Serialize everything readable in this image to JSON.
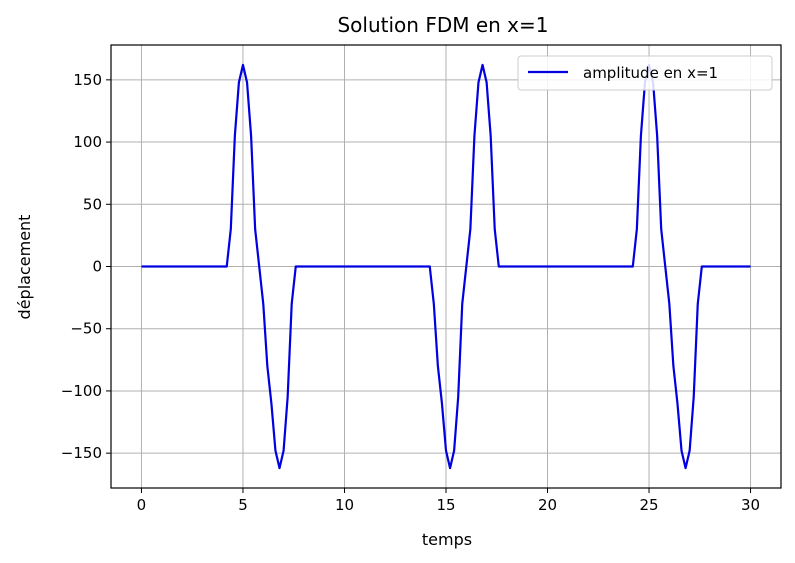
{
  "chart_data": {
    "type": "line",
    "title": "Solution FDM en x=1",
    "xlabel": "temps",
    "ylabel": "déplacement",
    "xlim": [
      -1.5,
      31.5
    ],
    "ylim": [
      -178,
      178
    ],
    "xticks": [
      0,
      5,
      10,
      15,
      20,
      25,
      30
    ],
    "xtick_labels": [
      "0",
      "5",
      "10",
      "15",
      "20",
      "25",
      "30"
    ],
    "yticks": [
      -150,
      -100,
      -50,
      0,
      50,
      100,
      150
    ],
    "ytick_labels": [
      "−150",
      "−100",
      "−50",
      "0",
      "50",
      "100",
      "150"
    ],
    "grid": true,
    "legend_position": "upper-right",
    "series": [
      {
        "name": "amplitude en x=1",
        "color": "#0000e0",
        "x": [
          0,
          0.2,
          0.4,
          0.6,
          0.8,
          1.0,
          1.2,
          1.4,
          1.6,
          1.8,
          2.0,
          2.2,
          2.4,
          2.6,
          2.8,
          3.0,
          3.2,
          3.4,
          3.6,
          3.8,
          4.0,
          4.2,
          4.4,
          4.6,
          4.8,
          5.0,
          5.2,
          5.4,
          5.6,
          5.8,
          6.0,
          6.2,
          6.4,
          6.6,
          6.8,
          7.0,
          7.2,
          7.4,
          7.6,
          7.8,
          8.0,
          8.2,
          8.4,
          8.6,
          8.8,
          9.0,
          9.2,
          9.4,
          9.6,
          9.8,
          10.0,
          10.2,
          10.4,
          10.6,
          10.8,
          11.0,
          11.2,
          11.4,
          11.6,
          11.8,
          12.0,
          12.2,
          12.4,
          12.6,
          12.8,
          13.0,
          13.2,
          13.4,
          13.6,
          13.8,
          14.0,
          14.2,
          14.4,
          14.6,
          14.8,
          15.0,
          15.2,
          15.4,
          15.6,
          15.8,
          16.0,
          16.2,
          16.4,
          16.6,
          16.8,
          17.0,
          17.2,
          17.4,
          17.6,
          17.8,
          18.0,
          18.2,
          18.4,
          18.6,
          18.8,
          19.0,
          19.2,
          19.4,
          19.6,
          19.8,
          20.0,
          20.2,
          20.4,
          20.6,
          20.8,
          21.0,
          21.2,
          21.4,
          21.6,
          21.8,
          22.0,
          22.2,
          22.4,
          22.6,
          22.8,
          23.0,
          23.2,
          23.4,
          23.6,
          23.8,
          24.0,
          24.2,
          24.4,
          24.6,
          24.8,
          25.0,
          25.2,
          25.4,
          25.6,
          25.8,
          26.0,
          26.2,
          26.4,
          26.6,
          26.8,
          27.0,
          27.2,
          27.4,
          27.6,
          27.8,
          28.0,
          28.2,
          28.4,
          28.6,
          28.8,
          29.0,
          29.2,
          29.4,
          29.6,
          29.8,
          30.0
        ],
        "y": [
          0,
          0,
          0,
          0,
          0,
          0,
          0,
          0,
          0,
          0,
          0,
          0,
          0,
          0,
          0,
          0,
          0,
          0,
          0,
          0,
          0,
          0,
          30,
          105,
          148,
          162,
          148,
          105,
          30,
          0,
          -30,
          -80,
          -110,
          -148,
          -162,
          -148,
          -105,
          -30,
          0,
          0,
          0,
          0,
          0,
          0,
          0,
          0,
          0,
          0,
          0,
          0,
          0,
          0,
          0,
          0,
          0,
          0,
          0,
          0,
          0,
          0,
          0,
          0,
          0,
          0,
          0,
          0,
          0,
          0,
          0,
          0,
          0,
          0,
          -30,
          -80,
          -110,
          -148,
          -162,
          -148,
          -105,
          -30,
          0,
          30,
          105,
          148,
          162,
          148,
          105,
          30,
          0,
          0,
          0,
          0,
          0,
          0,
          0,
          0,
          0,
          0,
          0,
          0,
          0,
          0,
          0,
          0,
          0,
          0,
          0,
          0,
          0,
          0,
          0,
          0,
          0,
          0,
          0,
          0,
          0,
          0,
          0,
          0,
          0,
          0,
          30,
          105,
          148,
          162,
          148,
          105,
          30,
          0,
          -30,
          -80,
          -110,
          -148,
          -162,
          -148,
          -105,
          -30,
          0,
          0,
          0,
          0,
          0,
          0,
          0,
          0,
          0,
          0,
          0,
          0,
          0
        ]
      }
    ]
  }
}
